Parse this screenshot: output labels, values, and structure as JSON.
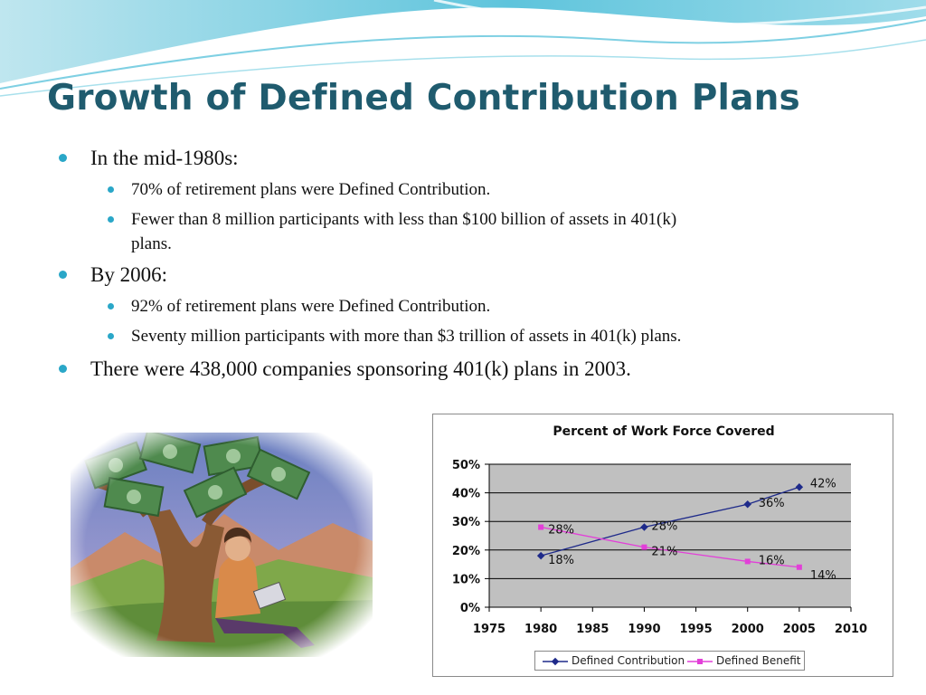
{
  "slide": {
    "title": "Growth of Defined Contribution Plans",
    "bullets": [
      {
        "text": "In the mid-1980s:"
      },
      {
        "text": "70% of retirement plans were Defined Contribution."
      },
      {
        "text": "Fewer than 8 million participants with less than $100 billion of assets in 401(k)",
        "cont": "plans."
      },
      {
        "text": "By 2006:"
      },
      {
        "text": "92% of retirement plans were Defined Contribution."
      },
      {
        "text": "Seventy million participants with more than $3 trillion of assets in 401(k) plans."
      },
      {
        "text": "There were 438,000 companies sponsoring 401(k) plans in 2003."
      }
    ]
  },
  "colors": {
    "title": "#1f5b6e",
    "bullet": "#2aa7c8",
    "plot_bg": "#c0c0c0",
    "dc_line": "#1e2a8a",
    "db_line": "#e23fd8"
  },
  "chart_data": {
    "type": "line",
    "title": "Percent of Work Force Covered",
    "xlabel": "",
    "ylabel": "",
    "x_ticks": [
      "1975",
      "1980",
      "1985",
      "1990",
      "1995",
      "2000",
      "2005",
      "2010"
    ],
    "y_ticks": [
      "0%",
      "10%",
      "20%",
      "30%",
      "40%",
      "50%"
    ],
    "xlim": [
      1975,
      2010
    ],
    "ylim": [
      0,
      50
    ],
    "grid": true,
    "legend": "bottom",
    "series": [
      {
        "name": "Defined Contribution",
        "x": [
          1980,
          1990,
          2000,
          2005
        ],
        "values": [
          18,
          28,
          36,
          42
        ],
        "labels": [
          "18%",
          "28%",
          "36%",
          "42%"
        ]
      },
      {
        "name": "Defined Benefit",
        "x": [
          1980,
          1990,
          2000,
          2005
        ],
        "values": [
          28,
          21,
          16,
          14
        ],
        "labels": [
          "28%",
          "21%",
          "16%",
          "14%"
        ]
      }
    ]
  },
  "picture": {
    "icon": "money-tree-illustration"
  }
}
